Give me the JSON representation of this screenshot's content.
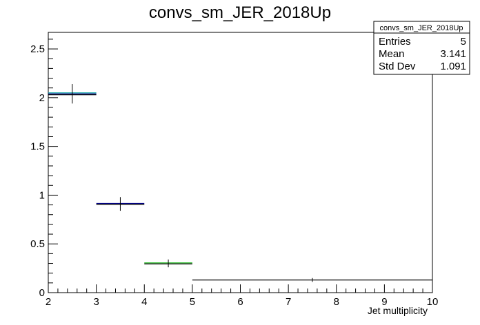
{
  "chart_data": {
    "type": "histogram",
    "title": "convs_sm_JER_2018Up",
    "xlabel": "Jet multiplicity",
    "ylabel": "",
    "xlim": [
      2,
      10
    ],
    "ylim": [
      0,
      2.67
    ],
    "x_ticks": [
      "2",
      "3",
      "4",
      "5",
      "6",
      "7",
      "8",
      "9",
      "10"
    ],
    "y_ticks": [
      "0",
      "0.5",
      "1",
      "1.5",
      "2",
      "2.5"
    ],
    "bins": [
      {
        "x_low": 2,
        "x_high": 3,
        "value": 2.04,
        "error": 0.1,
        "colors": [
          "#00a0a0",
          "#000080",
          "#000000"
        ]
      },
      {
        "x_low": 3,
        "x_high": 4,
        "value": 0.91,
        "error": 0.07,
        "colors": [
          "#000080",
          "#000000"
        ]
      },
      {
        "x_low": 4,
        "x_high": 5,
        "value": 0.3,
        "error": 0.04,
        "colors": [
          "#00b000",
          "#000000"
        ]
      },
      {
        "x_low": 5,
        "x_high": 10,
        "value": 0.13,
        "error": 0.02,
        "colors": [
          "#000000"
        ]
      }
    ],
    "stats": {
      "name": "convs_sm_JER_2018Up",
      "rows": [
        {
          "label": "Entries",
          "value": "5"
        },
        {
          "label": "Mean",
          "value": "3.141"
        },
        {
          "label": "Std Dev",
          "value": "1.091"
        }
      ]
    }
  }
}
